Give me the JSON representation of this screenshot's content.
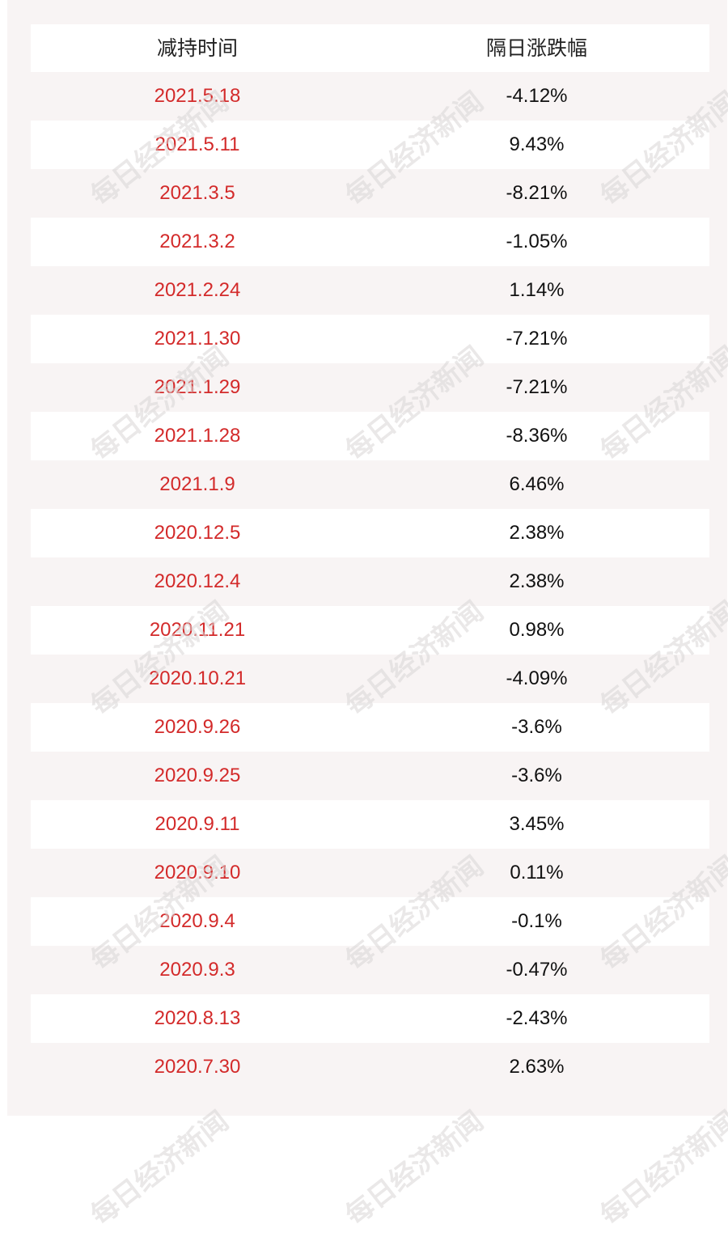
{
  "table": {
    "headers": [
      "减持时间",
      "隔日涨跌幅"
    ],
    "rows": [
      {
        "date": "2021.5.18",
        "change": "-4.12%"
      },
      {
        "date": "2021.5.11",
        "change": "9.43%"
      },
      {
        "date": "2021.3.5",
        "change": "-8.21%"
      },
      {
        "date": "2021.3.2",
        "change": "-1.05%"
      },
      {
        "date": "2021.2.24",
        "change": "1.14%"
      },
      {
        "date": "2021.1.30",
        "change": "-7.21%"
      },
      {
        "date": "2021.1.29",
        "change": "-7.21%"
      },
      {
        "date": "2021.1.28",
        "change": "-8.36%"
      },
      {
        "date": "2021.1.9",
        "change": "6.46%"
      },
      {
        "date": "2020.12.5",
        "change": "2.38%"
      },
      {
        "date": "2020.12.4",
        "change": "2.38%"
      },
      {
        "date": "2020.11.21",
        "change": "0.98%"
      },
      {
        "date": "2020.10.21",
        "change": "-4.09%"
      },
      {
        "date": "2020.9.26",
        "change": "-3.6%"
      },
      {
        "date": "2020.9.25",
        "change": "-3.6%"
      },
      {
        "date": "2020.9.11",
        "change": "3.45%"
      },
      {
        "date": "2020.9.10",
        "change": "0.11%"
      },
      {
        "date": "2020.9.4",
        "change": "-0.1%"
      },
      {
        "date": "2020.9.3",
        "change": "-0.47%"
      },
      {
        "date": "2020.8.13",
        "change": "-2.43%"
      },
      {
        "date": "2020.7.30",
        "change": "2.63%"
      }
    ]
  },
  "watermark": {
    "text": "每日经济新闻"
  },
  "colors": {
    "date_text": "#d32a2a",
    "change_text": "#111111",
    "row_light": "#ffffff",
    "row_dark": "#f8f4f4"
  }
}
